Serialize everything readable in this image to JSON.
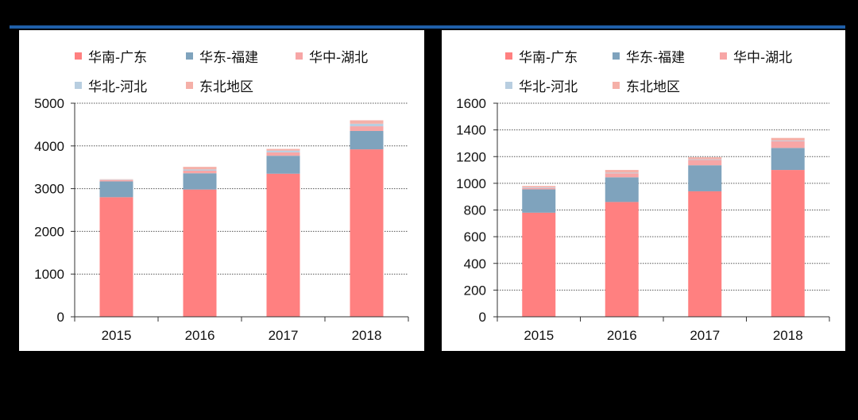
{
  "colors": {
    "guangdong": "#ff8080",
    "fujian": "#7fa3bd",
    "hubei": "#f7a6a6",
    "hebei": "#b8cee0",
    "dongbei": "#f5b0a8",
    "rule": "#1f5fa8"
  },
  "chart_data": [
    {
      "type": "bar",
      "stacked": true,
      "categories": [
        "2015",
        "2016",
        "2017",
        "2018"
      ],
      "ylim": [
        0,
        5000
      ],
      "yticks": [
        0,
        1000,
        2000,
        3000,
        4000,
        5000
      ],
      "grid": true,
      "legend_position": "top",
      "series": [
        {
          "name": "华南-广东",
          "values": [
            2800,
            2980,
            3350,
            3920
          ]
        },
        {
          "name": "华东-福建",
          "values": [
            370,
            380,
            420,
            430
          ]
        },
        {
          "name": "华中-湖北",
          "values": [
            30,
            60,
            80,
            110
          ]
        },
        {
          "name": "华北-河北",
          "values": [
            10,
            30,
            40,
            60
          ]
        },
        {
          "name": "东北地区",
          "values": [
            10,
            60,
            40,
            80
          ]
        }
      ]
    },
    {
      "type": "bar",
      "stacked": true,
      "categories": [
        "2015",
        "2016",
        "2017",
        "2018"
      ],
      "ylim": [
        0,
        1600
      ],
      "yticks": [
        0,
        200,
        400,
        600,
        800,
        1000,
        1200,
        1400,
        1600
      ],
      "grid": true,
      "legend_position": "top",
      "series": [
        {
          "name": "华南-广东",
          "values": [
            780,
            860,
            940,
            1100
          ]
        },
        {
          "name": "华东-福建",
          "values": [
            175,
            185,
            195,
            165
          ]
        },
        {
          "name": "华中-湖北",
          "values": [
            10,
            30,
            40,
            50
          ]
        },
        {
          "name": "华北-河北",
          "values": [
            5,
            5,
            5,
            5
          ]
        },
        {
          "name": "东北地区",
          "values": [
            10,
            20,
            15,
            20
          ]
        }
      ]
    }
  ]
}
